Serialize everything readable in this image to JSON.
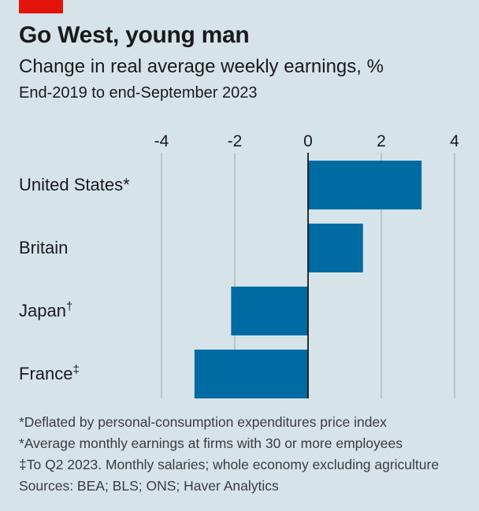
{
  "brand_color": "#e3120b",
  "title": "Go West, young man",
  "subtitle": "Change in real average weekly earnings, %",
  "period": "End-2019 to end-September 2023",
  "chart_data": {
    "type": "bar",
    "orientation": "horizontal",
    "categories": [
      "United States*",
      "Britain",
      "Japan†",
      "France‡"
    ],
    "values": [
      3.1,
      1.5,
      -2.1,
      -3.1
    ],
    "xlim": [
      -4,
      4
    ],
    "xticks": [
      "-4",
      "-2",
      "0",
      "2",
      "4"
    ],
    "xtick_values": [
      -4,
      -2,
      0,
      2,
      4
    ],
    "grid": true,
    "bar_color": "#006ba2"
  },
  "notes": [
    "*Deflated by personal-consumption expenditures price index",
    "*Average monthly earnings at firms with 30 or more employees",
    "‡To Q2 2023. Monthly salaries; whole economy excluding agriculture",
    "Sources: BEA; BLS; ONS; Haver Analytics"
  ]
}
